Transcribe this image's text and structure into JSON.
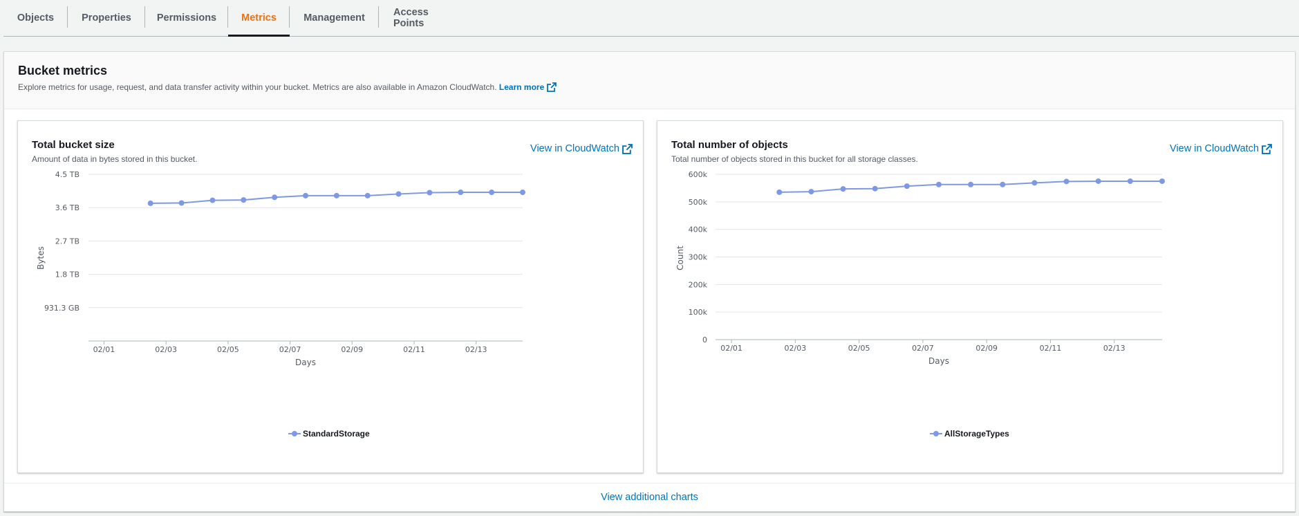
{
  "tabs": [
    {
      "label": "Objects",
      "active": false
    },
    {
      "label": "Properties",
      "active": false
    },
    {
      "label": "Permissions",
      "active": false
    },
    {
      "label": "Metrics",
      "active": true
    },
    {
      "label": "Management",
      "active": false
    },
    {
      "label": "Access Points",
      "active": false
    }
  ],
  "header": {
    "title": "Bucket metrics",
    "description": "Explore metrics for usage, request, and data transfer activity within your bucket. Metrics are also available in Amazon CloudWatch.",
    "learn_more": "Learn more"
  },
  "panels": [
    {
      "title": "Total bucket size",
      "description": "Amount of data in bytes stored in this bucket.",
      "link": "View in CloudWatch"
    },
    {
      "title": "Total number of objects",
      "description": "Total number of objects stored in this bucket for all storage classes.",
      "link": "View in CloudWatch"
    }
  ],
  "footer": {
    "link": "View additional charts"
  },
  "colors": {
    "accent": "#ec7211",
    "link": "#0073bb",
    "series": "#7d99e6"
  },
  "chart_data": [
    {
      "type": "line",
      "xlabel": "Days",
      "ylabel": "Bytes",
      "x_ticks": [
        "02/01",
        "02/03",
        "02/05",
        "02/07",
        "02/09",
        "02/11",
        "02/13"
      ],
      "y_ticks": [
        "931.3 GB",
        "1.8 TB",
        "2.7 TB",
        "3.6 TB",
        "4.5 TB"
      ],
      "y_tick_values": [
        1.0,
        2.0,
        3.0,
        4.0,
        5.0
      ],
      "ylim": [
        0,
        5.0
      ],
      "xlim": [
        0.5,
        14.5
      ],
      "series": [
        {
          "name": "StandardStorage",
          "x": [
            2.5,
            3.5,
            4.5,
            5.5,
            6.5,
            7.5,
            8.5,
            9.5,
            10.5,
            11.5,
            12.5,
            13.5,
            14.5
          ],
          "values": [
            4.13,
            4.14,
            4.22,
            4.23,
            4.31,
            4.36,
            4.36,
            4.36,
            4.41,
            4.45,
            4.46,
            4.46,
            4.46
          ]
        }
      ]
    },
    {
      "type": "line",
      "xlabel": "Days",
      "ylabel": "Count",
      "x_ticks": [
        "02/01",
        "02/03",
        "02/05",
        "02/07",
        "02/09",
        "02/11",
        "02/13"
      ],
      "y_ticks": [
        "0",
        "100k",
        "200k",
        "300k",
        "400k",
        "500k",
        "600k"
      ],
      "y_tick_values": [
        0,
        100000,
        200000,
        300000,
        400000,
        500000,
        600000
      ],
      "ylim": [
        0,
        600000
      ],
      "xlim": [
        0.5,
        14.5
      ],
      "series": [
        {
          "name": "AllStorageTypes",
          "x": [
            2.5,
            3.5,
            4.5,
            5.5,
            6.5,
            7.5,
            8.5,
            9.5,
            10.5,
            11.5,
            12.5,
            13.5,
            14.5
          ],
          "values": [
            535000,
            537000,
            547000,
            548000,
            557000,
            563000,
            563000,
            563000,
            569000,
            574000,
            575000,
            575000,
            575000
          ]
        }
      ]
    }
  ]
}
